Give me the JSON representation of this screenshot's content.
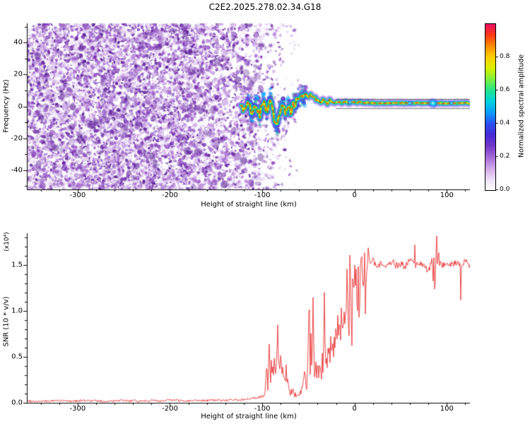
{
  "title": "C2E2.2025.278.02.34.G18",
  "chart_data": [
    {
      "type": "heatmap",
      "title": "C2E2.2025.278.02.34.G18",
      "xlabel": "Height of straight line (km)",
      "ylabel": "Frequency (Hz)",
      "xlim": [
        -355,
        125
      ],
      "ylim": [
        -52,
        52
      ],
      "x_ticks": [
        -300,
        -200,
        -100,
        0,
        100
      ],
      "x_tick_labels": [
        "-300",
        "-200",
        "-100",
        "0",
        "100"
      ],
      "y_ticks": [
        -40,
        -20,
        0,
        20,
        40
      ],
      "y_tick_labels": [
        "-40",
        "-20",
        "0",
        "20",
        "40"
      ],
      "colorbar": {
        "label": "Normalized spectral amplitude",
        "ticks": [
          0,
          0.2,
          0.4,
          0.6,
          0.8
        ],
        "tick_labels": [
          "0.0",
          "0.2",
          "0.4",
          "0.6",
          "0.8"
        ],
        "range": [
          0,
          1
        ],
        "colors": [
          "#ffffff",
          "#ecdcf6",
          "#cfa6e8",
          "#a468d6",
          "#7136c8",
          "#4629d8",
          "#2a50f0",
          "#0a9cff",
          "#00d2e0",
          "#22e48c",
          "#7cf03c",
          "#d8f000",
          "#ffd000",
          "#ff8c00",
          "#ff3814",
          "#e80e60"
        ]
      },
      "features": {
        "noise_region": {
          "x_range": [
            -355,
            -58
          ],
          "description": "speckled purple spectral noise filling full frequency range, density fading toward -60 km"
        },
        "noise_palette": [
          "#f1e6f8",
          "#e4cef2",
          "#d2b0e8",
          "#ba8bdb",
          "#9f63cc",
          "#8440bc",
          "#6b28a8",
          "#541b90"
        ],
        "halo_palette": [
          "#7a30c0",
          "#4545e0",
          "#00a8ff",
          "#35d8a0"
        ],
        "signal_trace": [
          [
            -123,
            1
          ],
          [
            -119,
            -3
          ],
          [
            -115,
            4
          ],
          [
            -111,
            -5
          ],
          [
            -107,
            2
          ],
          [
            -103,
            -6
          ],
          [
            -99,
            4
          ],
          [
            -95,
            -4
          ],
          [
            -91,
            6
          ],
          [
            -87,
            -8
          ],
          [
            -84,
            -14
          ],
          [
            -81,
            -4
          ],
          [
            -78,
            3
          ],
          [
            -75,
            -5
          ],
          [
            -72,
            2
          ],
          [
            -69,
            -3
          ],
          [
            -66,
            1
          ],
          [
            -62,
            4
          ],
          [
            -58,
            6
          ],
          [
            -54,
            7
          ],
          [
            -50,
            6
          ],
          [
            -46,
            7
          ],
          [
            -42,
            5
          ],
          [
            -38,
            2
          ],
          [
            -34,
            4
          ],
          [
            -30,
            2
          ],
          [
            -26,
            4
          ],
          [
            -22,
            2
          ],
          [
            -18,
            3
          ],
          [
            -14,
            2
          ],
          [
            -10,
            3
          ],
          [
            -6,
            2
          ],
          [
            -2,
            3
          ],
          [
            2,
            2
          ],
          [
            6,
            3
          ],
          [
            10,
            2
          ],
          [
            15,
            2.2
          ],
          [
            20,
            2
          ],
          [
            40,
            2
          ],
          [
            60,
            2
          ],
          [
            80,
            2
          ],
          [
            100,
            2
          ],
          [
            125,
            2
          ]
        ],
        "reference_lines": [
          4.4,
          -1.4
        ],
        "accent_blobs": [
          [
            85,
            2,
            8
          ],
          [
            60,
            2,
            4
          ],
          [
            105,
            2,
            3.5
          ],
          [
            -5,
            2.5,
            4
          ]
        ]
      }
    },
    {
      "type": "line",
      "xlabel": "Height of straight line (km)",
      "ylabel": "SNR (10 * v/v)",
      "y_scale_note": "(x10⁴)",
      "xlim": [
        -355,
        125
      ],
      "ylim": [
        0,
        1.85
      ],
      "x_ticks": [
        -300,
        -200,
        -100,
        0,
        100
      ],
      "x_tick_labels": [
        "-300",
        "-200",
        "-100",
        "0",
        "100"
      ],
      "y_ticks": [
        0,
        0.5,
        1,
        1.5
      ],
      "y_tick_labels": [
        "0.0",
        "0.5",
        "1.0",
        "1.5"
      ],
      "series": [
        {
          "name": "SNR",
          "color": "#e93434",
          "points": [
            [
              -350,
              0.02
            ],
            [
              -340,
              0.015
            ],
            [
              -330,
              0.02
            ],
            [
              -320,
              0.025
            ],
            [
              -310,
              0.018
            ],
            [
              -300,
              0.022
            ],
            [
              -290,
              0.025
            ],
            [
              -280,
              0.02
            ],
            [
              -270,
              0.016
            ],
            [
              -260,
              0.02
            ],
            [
              -250,
              0.024
            ],
            [
              -240,
              0.02
            ],
            [
              -230,
              0.022
            ],
            [
              -220,
              0.026
            ],
            [
              -210,
              0.02
            ],
            [
              -200,
              0.03
            ],
            [
              -190,
              0.024
            ],
            [
              -180,
              0.022
            ],
            [
              -170,
              0.03
            ],
            [
              -160,
              0.026
            ],
            [
              -150,
              0.03
            ],
            [
              -140,
              0.026
            ],
            [
              -130,
              0.03
            ],
            [
              -120,
              0.035
            ],
            [
              -115,
              0.04
            ],
            [
              -110,
              0.045
            ],
            [
              -105,
              0.05
            ],
            [
              -100,
              0.07
            ],
            [
              -97,
              0.12
            ],
            [
              -95,
              0.45
            ],
            [
              -94,
              0.2
            ],
            [
              -92,
              0.55
            ],
            [
              -91,
              0.3
            ],
            [
              -89,
              0.5
            ],
            [
              -88,
              0.22
            ],
            [
              -86,
              0.6
            ],
            [
              -85,
              0.33
            ],
            [
              -83,
              0.68
            ],
            [
              -82,
              0.3
            ],
            [
              -80,
              0.52
            ],
            [
              -79,
              0.24
            ],
            [
              -77,
              0.45
            ],
            [
              -76,
              0.2
            ],
            [
              -74,
              0.32
            ],
            [
              -72,
              0.16
            ],
            [
              -70,
              0.1
            ],
            [
              -68,
              0.12
            ],
            [
              -65,
              0.1
            ],
            [
              -62,
              0.09
            ],
            [
              -60,
              0.1
            ],
            [
              -58,
              0.12
            ],
            [
              -56,
              0.16
            ],
            [
              -54,
              0.3
            ],
            [
              -52,
              0.15
            ],
            [
              -50,
              0.62
            ],
            [
              -49,
              0.95
            ],
            [
              -48,
              0.4
            ],
            [
              -47,
              0.72
            ],
            [
              -46,
              0.35
            ],
            [
              -45,
              1.02
            ],
            [
              -44,
              0.5
            ],
            [
              -43,
              0.3
            ],
            [
              -42,
              0.6
            ],
            [
              -41,
              0.35
            ],
            [
              -40,
              0.5
            ],
            [
              -39,
              0.3
            ],
            [
              -38,
              0.46
            ],
            [
              -36,
              0.3
            ],
            [
              -35,
              0.56
            ],
            [
              -34,
              0.36
            ],
            [
              -33,
              1.2
            ],
            [
              -32,
              0.6
            ],
            [
              -31,
              0.42
            ],
            [
              -30,
              0.55
            ],
            [
              -29,
              0.45
            ],
            [
              -28,
              0.6
            ],
            [
              -27,
              0.5
            ],
            [
              -26,
              0.66
            ],
            [
              -25,
              0.55
            ],
            [
              -24,
              0.7
            ],
            [
              -23,
              0.6
            ],
            [
              -22,
              0.76
            ],
            [
              -21,
              0.65
            ],
            [
              -20,
              0.8
            ],
            [
              -19,
              0.7
            ],
            [
              -18,
              0.86
            ],
            [
              -17,
              0.75
            ],
            [
              -16,
              0.9
            ],
            [
              -15,
              0.8
            ],
            [
              -14,
              0.96
            ],
            [
              -13,
              0.85
            ],
            [
              -12,
              1.0
            ],
            [
              -11,
              0.9
            ],
            [
              -10,
              1.06
            ],
            [
              -9,
              1.0
            ],
            [
              -8,
              1.45
            ],
            [
              -7,
              1.1
            ],
            [
              -6,
              0.75
            ],
            [
              -5,
              1.5
            ],
            [
              -4,
              1.2
            ],
            [
              -3,
              0.55
            ],
            [
              -2,
              1.35
            ],
            [
              -1,
              1.45
            ],
            [
              0,
              1.4
            ],
            [
              1,
              1.5
            ],
            [
              2,
              1.46
            ],
            [
              3,
              0.8
            ],
            [
              4,
              1.4
            ],
            [
              5,
              0.7
            ],
            [
              6,
              1.46
            ],
            [
              7,
              1.55
            ],
            [
              8,
              1.5
            ],
            [
              9,
              1.0
            ],
            [
              10,
              1.46
            ],
            [
              11,
              1.5
            ],
            [
              12,
              0.9
            ],
            [
              13,
              1.42
            ],
            [
              14,
              1.5
            ],
            [
              15,
              1.46
            ],
            [
              16,
              1.5
            ],
            [
              18,
              1.52
            ],
            [
              20,
              1.55
            ],
            [
              25,
              1.5
            ],
            [
              30,
              1.52
            ],
            [
              35,
              1.48
            ],
            [
              40,
              1.55
            ],
            [
              45,
              1.5
            ],
            [
              50,
              1.52
            ],
            [
              55,
              1.48
            ],
            [
              60,
              1.55
            ],
            [
              65,
              1.5
            ],
            [
              70,
              1.52
            ],
            [
              75,
              1.48
            ],
            [
              80,
              1.45
            ],
            [
              82,
              1.5
            ],
            [
              84,
              1.55
            ],
            [
              85,
              1.3
            ],
            [
              86,
              1.6
            ],
            [
              87,
              1.1
            ],
            [
              88,
              1.5
            ],
            [
              89,
              1.9
            ],
            [
              90,
              1.45
            ],
            [
              91,
              1.7
            ],
            [
              92,
              1.5
            ],
            [
              93,
              1.55
            ],
            [
              95,
              1.5
            ],
            [
              100,
              1.52
            ],
            [
              105,
              1.5
            ],
            [
              110,
              1.52
            ],
            [
              115,
              1.5
            ],
            [
              120,
              1.55
            ],
            [
              125,
              1.5
            ]
          ]
        }
      ]
    }
  ]
}
